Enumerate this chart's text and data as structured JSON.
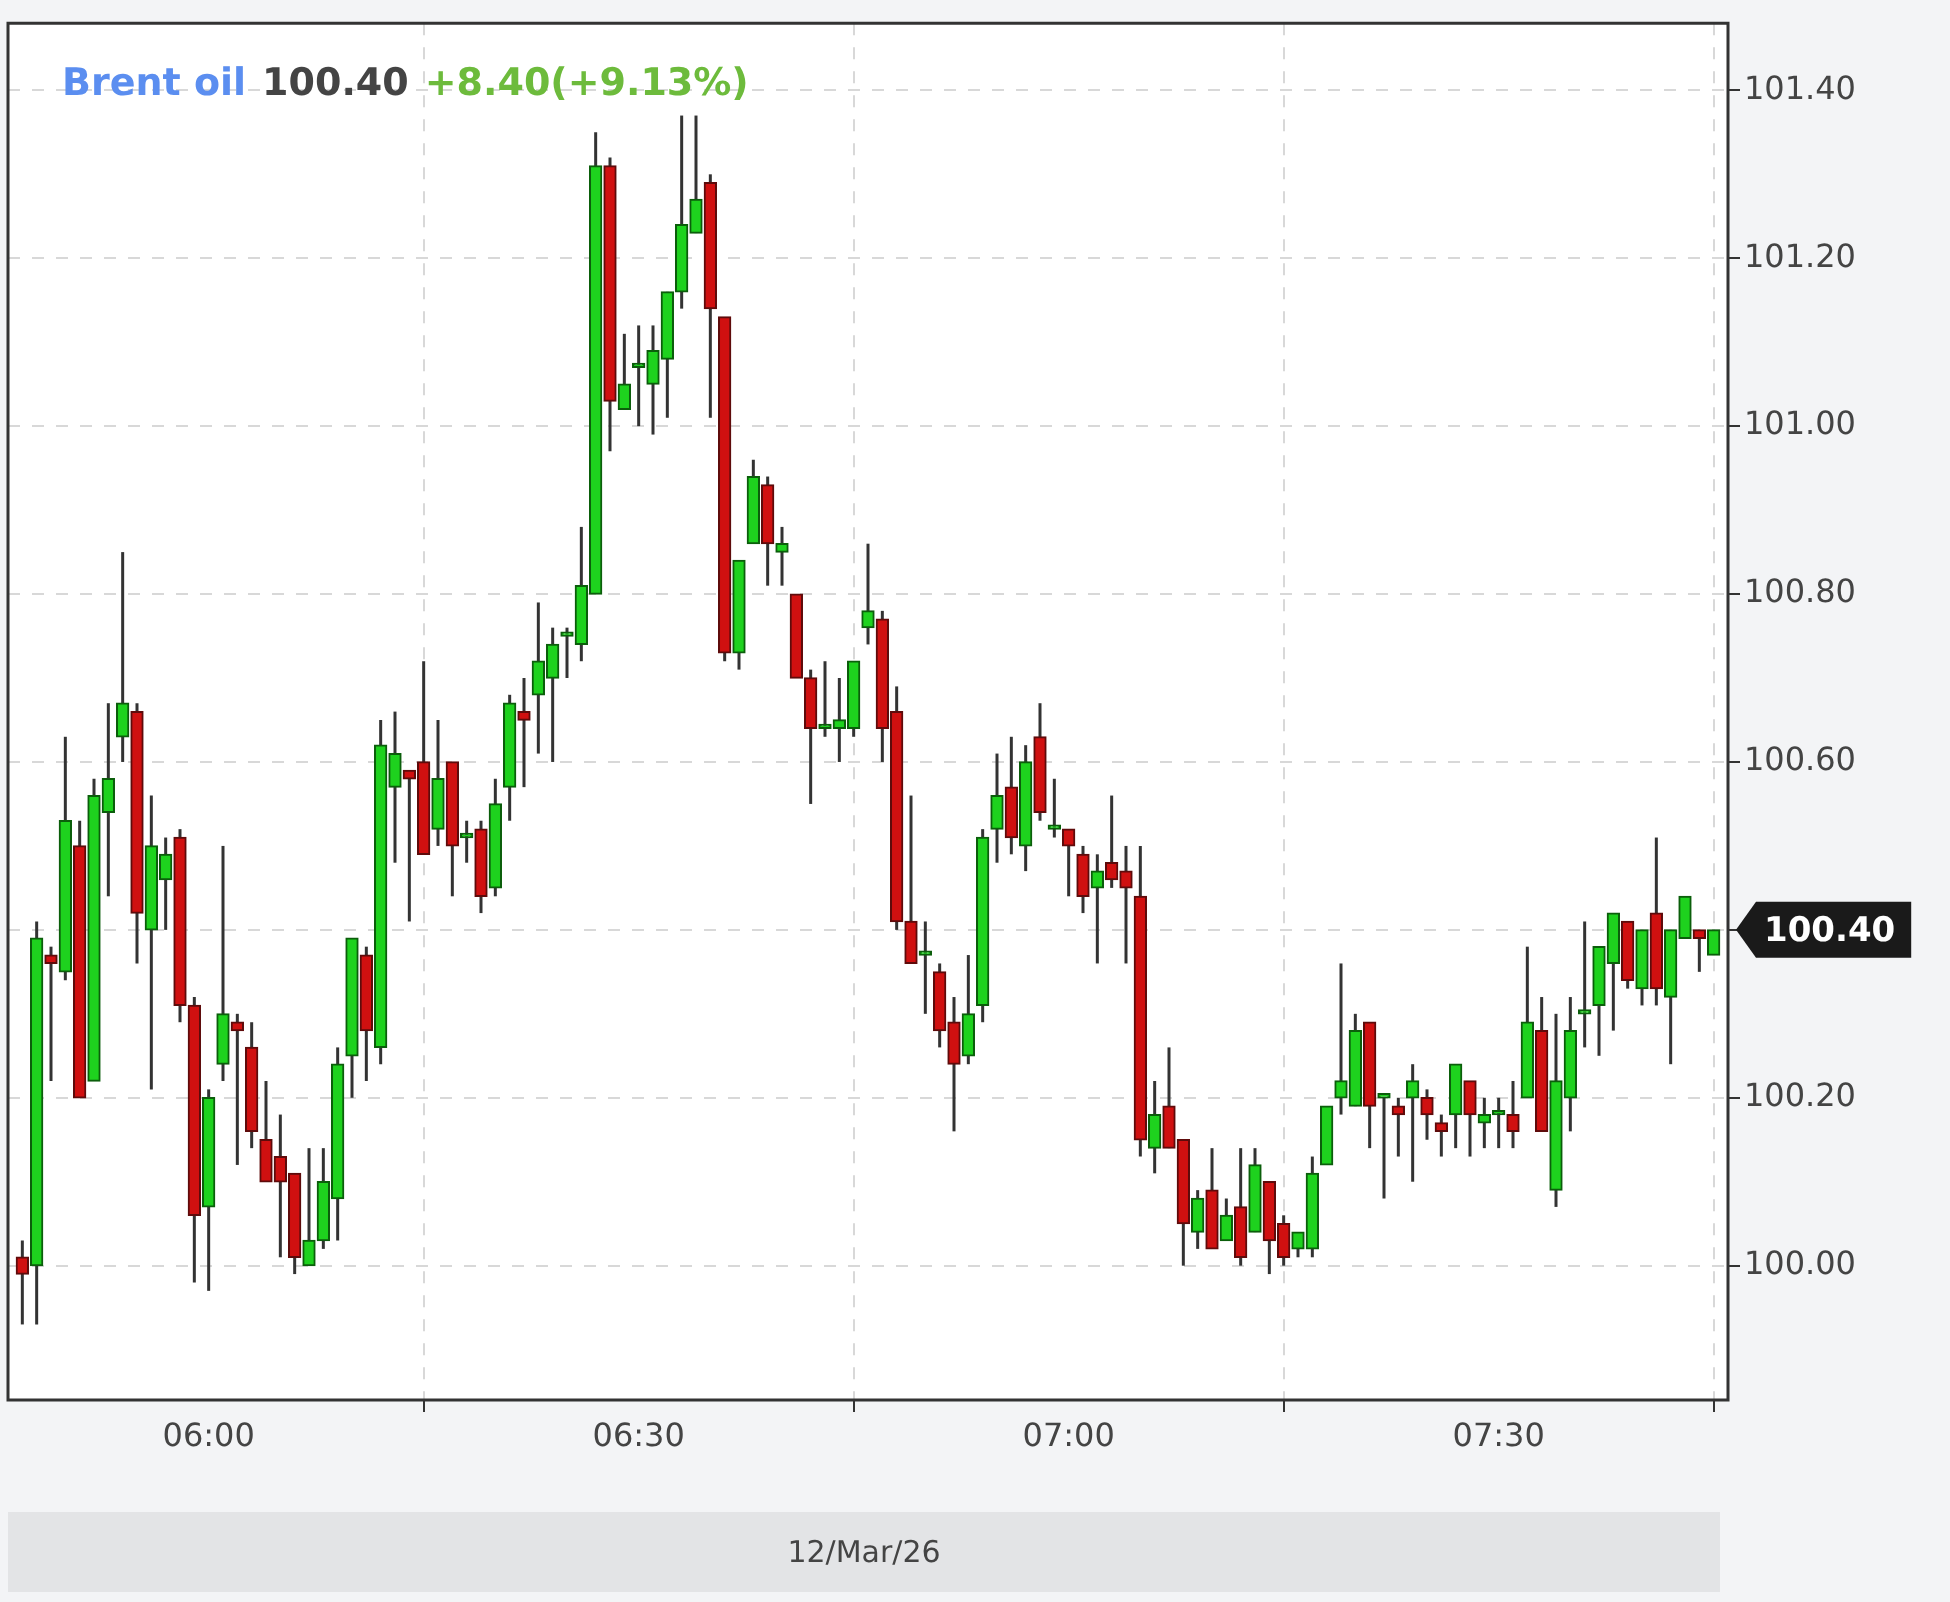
{
  "chart_data": {
    "type": "candlestick",
    "title": "Brent oil",
    "xlabel": "12/Mar/26",
    "annotations": [
      "100.40",
      "+8.40(+9.13%)",
      "100.40"
    ],
    "x": [
      "--03-12T05:47",
      "--03-12T05:48",
      "--03-12T05:49",
      "--03-12T05:50",
      "--03-12T05:51",
      "--03-12T05:52",
      "--03-12T05:53",
      "--03-12T05:54",
      "--03-12T05:55",
      "--03-12T05:56",
      "--03-12T05:57",
      "--03-12T05:58",
      "--03-12T05:59",
      "--03-12T06:00",
      "--03-12T06:01",
      "--03-12T06:02",
      "--03-12T06:03",
      "--03-12T06:04",
      "--03-12T06:05",
      "--03-12T06:06",
      "--03-12T06:07",
      "--03-12T06:08",
      "--03-12T06:09",
      "--03-12T06:10",
      "--03-12T06:11",
      "--03-12T06:12",
      "--03-12T06:13",
      "--03-12T06:14",
      "--03-12T06:15",
      "--03-12T06:16",
      "--03-12T06:17",
      "--03-12T06:18",
      "--03-12T06:19",
      "--03-12T06:20",
      "--03-12T06:21",
      "--03-12T06:22",
      "--03-12T06:23",
      "--03-12T06:24",
      "--03-12T06:25",
      "--03-12T06:26",
      "--03-12T06:27",
      "--03-12T06:28",
      "--03-12T06:29",
      "--03-12T06:30",
      "--03-12T06:31",
      "--03-12T06:32",
      "--03-12T06:33",
      "--03-12T06:34",
      "--03-12T06:35",
      "--03-12T06:36",
      "--03-12T06:37",
      "--03-12T06:38",
      "--03-12T06:39",
      "--03-12T06:40",
      "--03-12T06:41",
      "--03-12T06:42",
      "--03-12T06:43",
      "--03-12T06:44",
      "--03-12T06:45",
      "--03-12T06:46",
      "--03-12T06:47",
      "--03-12T06:48",
      "--03-12T06:49",
      "--03-12T06:50",
      "--03-12T06:51",
      "--03-12T06:52",
      "--03-12T06:53",
      "--03-12T06:54",
      "--03-12T06:55",
      "--03-12T06:56",
      "--03-12T06:57",
      "--03-12T06:58",
      "--03-12T06:59",
      "--03-12T07:00",
      "--03-12T07:01",
      "--03-12T07:02",
      "--03-12T07:03",
      "--03-12T07:04",
      "--03-12T07:05",
      "--03-12T07:06",
      "--03-12T07:07",
      "--03-12T07:08",
      "--03-12T07:09",
      "--03-12T07:10",
      "--03-12T07:11",
      "--03-12T07:12",
      "--03-12T07:13",
      "--03-12T07:14",
      "--03-12T07:15",
      "--03-12T07:16",
      "--03-12T07:17",
      "--03-12T07:18",
      "--03-12T07:19",
      "--03-12T07:20",
      "--03-12T07:21",
      "--03-12T07:22",
      "--03-12T07:23",
      "--03-12T07:24",
      "--03-12T07:25",
      "--03-12T07:26",
      "--03-12T07:27",
      "--03-12T07:28",
      "--03-12T07:29",
      "--03-12T07:30",
      "--03-12T07:31",
      "--03-12T07:32",
      "--03-12T07:33",
      "--03-12T07:34",
      "--03-12T07:35",
      "--03-12T07:36",
      "--03-12T07:37",
      "--03-12T07:38",
      "--03-12T07:39",
      "--03-12T07:40",
      "--03-12T07:41",
      "--03-12T07:42",
      "--03-12T07:43",
      "--03-12T07:44",
      "--03-12T07:45"
    ],
    "ohlc": [
      [
        100.01,
        100.03,
        99.93,
        99.99
      ],
      [
        100.0,
        100.41,
        99.93,
        100.39
      ],
      [
        100.37,
        100.38,
        100.22,
        100.36
      ],
      [
        100.35,
        100.63,
        100.34,
        100.53
      ],
      [
        100.5,
        100.53,
        100.2,
        100.2
      ],
      [
        100.22,
        100.58,
        100.22,
        100.56
      ],
      [
        100.54,
        100.67,
        100.44,
        100.58
      ],
      [
        100.63,
        100.85,
        100.6,
        100.67
      ],
      [
        100.66,
        100.67,
        100.36,
        100.42
      ],
      [
        100.4,
        100.56,
        100.21,
        100.5
      ],
      [
        100.46,
        100.51,
        100.4,
        100.49
      ],
      [
        100.51,
        100.52,
        100.29,
        100.31
      ],
      [
        100.31,
        100.32,
        99.98,
        100.06
      ],
      [
        100.07,
        100.21,
        99.97,
        100.2
      ],
      [
        100.24,
        100.5,
        100.22,
        100.3
      ],
      [
        100.29,
        100.3,
        100.12,
        100.28
      ],
      [
        100.26,
        100.29,
        100.14,
        100.16
      ],
      [
        100.15,
        100.22,
        100.1,
        100.1
      ],
      [
        100.13,
        100.18,
        100.01,
        100.1
      ],
      [
        100.11,
        100.11,
        99.99,
        100.01
      ],
      [
        100.0,
        100.14,
        100.0,
        100.03
      ],
      [
        100.03,
        100.14,
        100.02,
        100.1
      ],
      [
        100.08,
        100.26,
        100.03,
        100.24
      ],
      [
        100.25,
        100.39,
        100.2,
        100.39
      ],
      [
        100.37,
        100.38,
        100.22,
        100.28
      ],
      [
        100.26,
        100.65,
        100.24,
        100.62
      ],
      [
        100.57,
        100.66,
        100.48,
        100.61
      ],
      [
        100.59,
        100.59,
        100.41,
        100.58
      ],
      [
        100.6,
        100.72,
        100.49,
        100.49
      ],
      [
        100.52,
        100.65,
        100.5,
        100.58
      ],
      [
        100.6,
        100.6,
        100.44,
        100.5
      ],
      [
        100.51,
        100.53,
        100.48,
        100.51
      ],
      [
        100.52,
        100.53,
        100.42,
        100.44
      ],
      [
        100.45,
        100.58,
        100.44,
        100.55
      ],
      [
        100.57,
        100.68,
        100.53,
        100.67
      ],
      [
        100.66,
        100.7,
        100.57,
        100.65
      ],
      [
        100.68,
        100.79,
        100.61,
        100.72
      ],
      [
        100.7,
        100.76,
        100.6,
        100.74
      ],
      [
        100.75,
        100.76,
        100.7,
        100.75
      ],
      [
        100.74,
        100.88,
        100.72,
        100.81
      ],
      [
        100.8,
        101.35,
        100.8,
        101.31
      ],
      [
        101.31,
        101.32,
        100.97,
        101.03
      ],
      [
        101.02,
        101.11,
        101.02,
        101.05
      ],
      [
        101.07,
        101.12,
        101.0,
        101.07
      ],
      [
        101.05,
        101.12,
        100.99,
        101.09
      ],
      [
        101.08,
        101.16,
        101.01,
        101.16
      ],
      [
        101.16,
        101.37,
        101.14,
        101.24
      ],
      [
        101.23,
        101.37,
        101.23,
        101.27
      ],
      [
        101.29,
        101.3,
        101.01,
        101.14
      ],
      [
        101.13,
        101.13,
        100.72,
        100.73
      ],
      [
        100.73,
        100.84,
        100.71,
        100.84
      ],
      [
        100.86,
        100.96,
        100.86,
        100.94
      ],
      [
        100.93,
        100.94,
        100.81,
        100.86
      ],
      [
        100.85,
        100.88,
        100.81,
        100.86
      ],
      [
        100.8,
        100.8,
        100.7,
        100.7
      ],
      [
        100.7,
        100.71,
        100.55,
        100.64
      ],
      [
        100.64,
        100.72,
        100.63,
        100.64
      ],
      [
        100.64,
        100.7,
        100.6,
        100.65
      ],
      [
        100.64,
        100.72,
        100.63,
        100.72
      ],
      [
        100.76,
        100.86,
        100.74,
        100.78
      ],
      [
        100.77,
        100.78,
        100.6,
        100.64
      ],
      [
        100.66,
        100.69,
        100.4,
        100.41
      ],
      [
        100.41,
        100.56,
        100.36,
        100.36
      ],
      [
        100.37,
        100.41,
        100.3,
        100.37
      ],
      [
        100.35,
        100.36,
        100.26,
        100.28
      ],
      [
        100.29,
        100.32,
        100.16,
        100.24
      ],
      [
        100.25,
        100.37,
        100.24,
        100.3
      ],
      [
        100.31,
        100.52,
        100.29,
        100.51
      ],
      [
        100.52,
        100.61,
        100.48,
        100.56
      ],
      [
        100.57,
        100.63,
        100.49,
        100.51
      ],
      [
        100.5,
        100.62,
        100.47,
        100.6
      ],
      [
        100.63,
        100.67,
        100.53,
        100.54
      ],
      [
        100.52,
        100.58,
        100.51,
        100.52
      ],
      [
        100.52,
        100.52,
        100.44,
        100.5
      ],
      [
        100.49,
        100.5,
        100.42,
        100.44
      ],
      [
        100.45,
        100.49,
        100.36,
        100.47
      ],
      [
        100.48,
        100.56,
        100.45,
        100.46
      ],
      [
        100.47,
        100.5,
        100.36,
        100.45
      ],
      [
        100.44,
        100.5,
        100.13,
        100.15
      ],
      [
        100.14,
        100.22,
        100.11,
        100.18
      ],
      [
        100.19,
        100.26,
        100.14,
        100.14
      ],
      [
        100.15,
        100.15,
        100.0,
        100.05
      ],
      [
        100.04,
        100.09,
        100.02,
        100.08
      ],
      [
        100.09,
        100.14,
        100.02,
        100.02
      ],
      [
        100.03,
        100.08,
        100.03,
        100.06
      ],
      [
        100.07,
        100.14,
        100.0,
        100.01
      ],
      [
        100.04,
        100.14,
        100.04,
        100.12
      ],
      [
        100.1,
        100.1,
        99.99,
        100.03
      ],
      [
        100.05,
        100.06,
        100.0,
        100.01
      ],
      [
        100.02,
        100.04,
        100.01,
        100.04
      ],
      [
        100.02,
        100.13,
        100.01,
        100.11
      ],
      [
        100.12,
        100.19,
        100.12,
        100.19
      ],
      [
        100.2,
        100.36,
        100.18,
        100.22
      ],
      [
        100.19,
        100.3,
        100.19,
        100.28
      ],
      [
        100.29,
        100.29,
        100.14,
        100.19
      ],
      [
        100.2,
        100.2,
        100.08,
        100.2
      ],
      [
        100.19,
        100.2,
        100.13,
        100.18
      ],
      [
        100.2,
        100.24,
        100.1,
        100.22
      ],
      [
        100.2,
        100.21,
        100.15,
        100.18
      ],
      [
        100.17,
        100.18,
        100.13,
        100.16
      ],
      [
        100.18,
        100.24,
        100.14,
        100.24
      ],
      [
        100.22,
        100.22,
        100.13,
        100.18
      ],
      [
        100.17,
        100.2,
        100.14,
        100.18
      ],
      [
        100.18,
        100.2,
        100.14,
        100.18
      ],
      [
        100.18,
        100.22,
        100.14,
        100.16
      ],
      [
        100.2,
        100.38,
        100.2,
        100.29
      ],
      [
        100.28,
        100.32,
        100.16,
        100.16
      ],
      [
        100.09,
        100.3,
        100.07,
        100.22
      ],
      [
        100.2,
        100.32,
        100.16,
        100.28
      ],
      [
        100.3,
        100.41,
        100.26,
        100.3
      ],
      [
        100.31,
        100.38,
        100.25,
        100.38
      ],
      [
        100.36,
        100.42,
        100.28,
        100.42
      ],
      [
        100.41,
        100.41,
        100.33,
        100.34
      ],
      [
        100.33,
        100.4,
        100.31,
        100.4
      ],
      [
        100.42,
        100.51,
        100.31,
        100.33
      ],
      [
        100.32,
        100.4,
        100.24,
        100.4
      ],
      [
        100.39,
        100.44,
        100.39,
        100.44
      ],
      [
        100.4,
        100.4,
        100.35,
        100.39
      ],
      [
        100.37,
        100.4,
        100.37,
        100.4
      ]
    ],
    "xlim": [
      "--03-12T05:46",
      "--03-12T07:46"
    ],
    "xticks": [
      {
        "value": "--03-12T06:00",
        "label": "06:00"
      },
      {
        "value": "--03-12T06:30",
        "label": "06:30"
      },
      {
        "value": "--03-12T07:00",
        "label": "07:00"
      },
      {
        "value": "--03-12T07:30",
        "label": "07:30"
      }
    ],
    "ylim": [
      99.84,
      101.48
    ],
    "yticks": [
      {
        "value": 100.0,
        "label": "100.00"
      },
      {
        "value": 100.2,
        "label": "100.20"
      },
      {
        "value": 100.4,
        "label": null
      },
      {
        "value": 100.6,
        "label": "100.60"
      },
      {
        "value": 100.8,
        "label": "100.80"
      },
      {
        "value": 101.0,
        "label": "101.00"
      },
      {
        "value": 101.2,
        "label": "101.20"
      },
      {
        "value": 101.4,
        "label": "101.40"
      }
    ],
    "grid": true,
    "legend": false
  }
}
